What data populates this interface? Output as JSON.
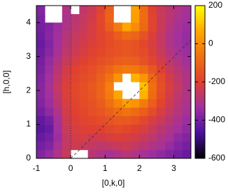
{
  "chart_data": {
    "type": "heatmap",
    "x_label": "[0,k,0]",
    "y_label": "[h,0,0]",
    "xlim": [
      -1,
      3.5
    ],
    "ylim": [
      0,
      4.5
    ],
    "xticks": [
      -1,
      0,
      1,
      2,
      3
    ],
    "yticks": [
      0,
      1,
      2,
      3,
      4
    ],
    "z": [
      [
        -380,
        -350,
        -300,
        -250,
        null,
        null,
        -280,
        -300,
        -320,
        -300,
        -280,
        -300,
        -320,
        -340,
        -360,
        -380,
        -400,
        -420
      ],
      [
        -400,
        -380,
        -320,
        -260,
        -240,
        -250,
        -260,
        -270,
        -260,
        -250,
        -240,
        -260,
        -280,
        -300,
        -320,
        -350,
        -380,
        -400
      ],
      [
        -420,
        -400,
        -340,
        -260,
        -230,
        -220,
        -240,
        -230,
        -220,
        -210,
        -220,
        -230,
        -250,
        -270,
        -300,
        -320,
        -360,
        -380
      ],
      [
        -440,
        -420,
        -330,
        -250,
        -220,
        -210,
        -200,
        -200,
        -180,
        -170,
        -180,
        -200,
        -220,
        -250,
        -280,
        -300,
        -330,
        -360
      ],
      [
        -430,
        -400,
        -320,
        -240,
        -210,
        -190,
        -180,
        -170,
        -150,
        -130,
        -130,
        -150,
        -180,
        -220,
        -250,
        -280,
        -310,
        -340
      ],
      [
        -400,
        -360,
        -300,
        -230,
        -200,
        -180,
        -160,
        -140,
        -110,
        -80,
        -60,
        -80,
        -120,
        -170,
        -220,
        -260,
        -290,
        -320
      ],
      [
        -380,
        -340,
        -280,
        -220,
        -190,
        -170,
        -150,
        -120,
        -70,
        -20,
        40,
        20,
        -40,
        -120,
        -190,
        -240,
        -280,
        -310
      ],
      [
        -370,
        -330,
        -270,
        -210,
        -180,
        -160,
        -140,
        -100,
        -40,
        60,
        null,
        null,
        80,
        -80,
        -170,
        -230,
        -270,
        -300
      ],
      [
        -370,
        -320,
        -260,
        -210,
        -180,
        -160,
        -130,
        -100,
        -30,
        null,
        null,
        null,
        100,
        -70,
        -160,
        -220,
        -260,
        -300
      ],
      [
        -380,
        -330,
        -270,
        -220,
        -190,
        -170,
        -150,
        -110,
        -60,
        20,
        null,
        80,
        20,
        -90,
        -170,
        -230,
        -270,
        -300
      ],
      [
        -390,
        -340,
        -280,
        -230,
        -200,
        -180,
        -160,
        -130,
        -100,
        -60,
        -40,
        -50,
        -80,
        -140,
        -200,
        -250,
        -280,
        -310
      ],
      [
        -400,
        -350,
        -300,
        -250,
        -220,
        -200,
        -180,
        -160,
        -140,
        -120,
        -110,
        -120,
        -150,
        -190,
        -230,
        -270,
        -300,
        -330
      ],
      [
        -410,
        -370,
        -320,
        -270,
        -240,
        -220,
        -200,
        -180,
        -160,
        -150,
        -140,
        -150,
        -170,
        -210,
        -250,
        -290,
        -320,
        -340
      ],
      [
        -420,
        -380,
        -330,
        -280,
        -250,
        -230,
        -210,
        -190,
        -170,
        -150,
        -140,
        -150,
        -180,
        -220,
        -260,
        -300,
        -330,
        -350
      ],
      [
        -410,
        -370,
        -330,
        -290,
        -260,
        -240,
        -220,
        -190,
        -160,
        -120,
        -80,
        -100,
        -150,
        -210,
        -260,
        -300,
        -330,
        -350
      ],
      [
        -400,
        -380,
        -340,
        -300,
        -270,
        -250,
        -220,
        -180,
        -120,
        -40,
        60,
        0,
        -90,
        -190,
        -250,
        -290,
        -320,
        -340
      ],
      [
        -390,
        null,
        null,
        -310,
        -280,
        -260,
        -230,
        -180,
        -100,
        null,
        null,
        40,
        -80,
        -190,
        -250,
        -280,
        -310,
        -330
      ],
      [
        -380,
        null,
        null,
        -300,
        null,
        -270,
        -240,
        -190,
        -110,
        null,
        null,
        50,
        -80,
        -200,
        -250,
        -280,
        -300,
        -320
      ]
    ],
    "colormap": [
      "#000000",
      "#4a10a0",
      "#a030a0",
      "#e04030",
      "#f07010",
      "#ffa800",
      "#ffff00"
    ],
    "colorbar": {
      "lim": [
        -600,
        200
      ],
      "ticks": [
        -600,
        -400,
        -200,
        0,
        200
      ]
    }
  }
}
